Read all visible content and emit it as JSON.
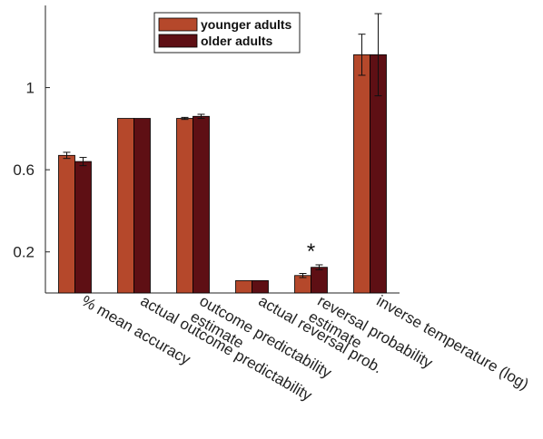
{
  "chart_data": {
    "type": "bar",
    "categories": [
      [
        "% mean accuracy"
      ],
      [
        "actual outcome predictability"
      ],
      [
        "outcome predictability",
        "estimate"
      ],
      [
        "actual reversal prob."
      ],
      [
        "reversal probability",
        "estimate"
      ],
      [
        "inverse temperature (log)"
      ]
    ],
    "series": [
      {
        "name": "younger adults",
        "color": "#b5482b",
        "values": [
          0.67,
          0.85,
          0.85,
          0.06,
          0.085,
          1.16
        ],
        "errors": [
          0.015,
          0.0,
          0.005,
          0.0,
          0.01,
          0.1
        ]
      },
      {
        "name": "older adults",
        "color": "#5e0f14",
        "values": [
          0.64,
          0.85,
          0.86,
          0.06,
          0.125,
          1.16
        ],
        "errors": [
          0.02,
          0.0,
          0.01,
          0.0,
          0.012,
          0.2
        ]
      }
    ],
    "yticks": [
      "0.2",
      "0.6",
      "1"
    ],
    "ytick_values": [
      0.2,
      0.6,
      1.0
    ],
    "ylim": [
      0,
      1.4
    ],
    "legend_position": "top-center",
    "annotations": [
      {
        "text": "*",
        "category_index": 4
      }
    ]
  }
}
